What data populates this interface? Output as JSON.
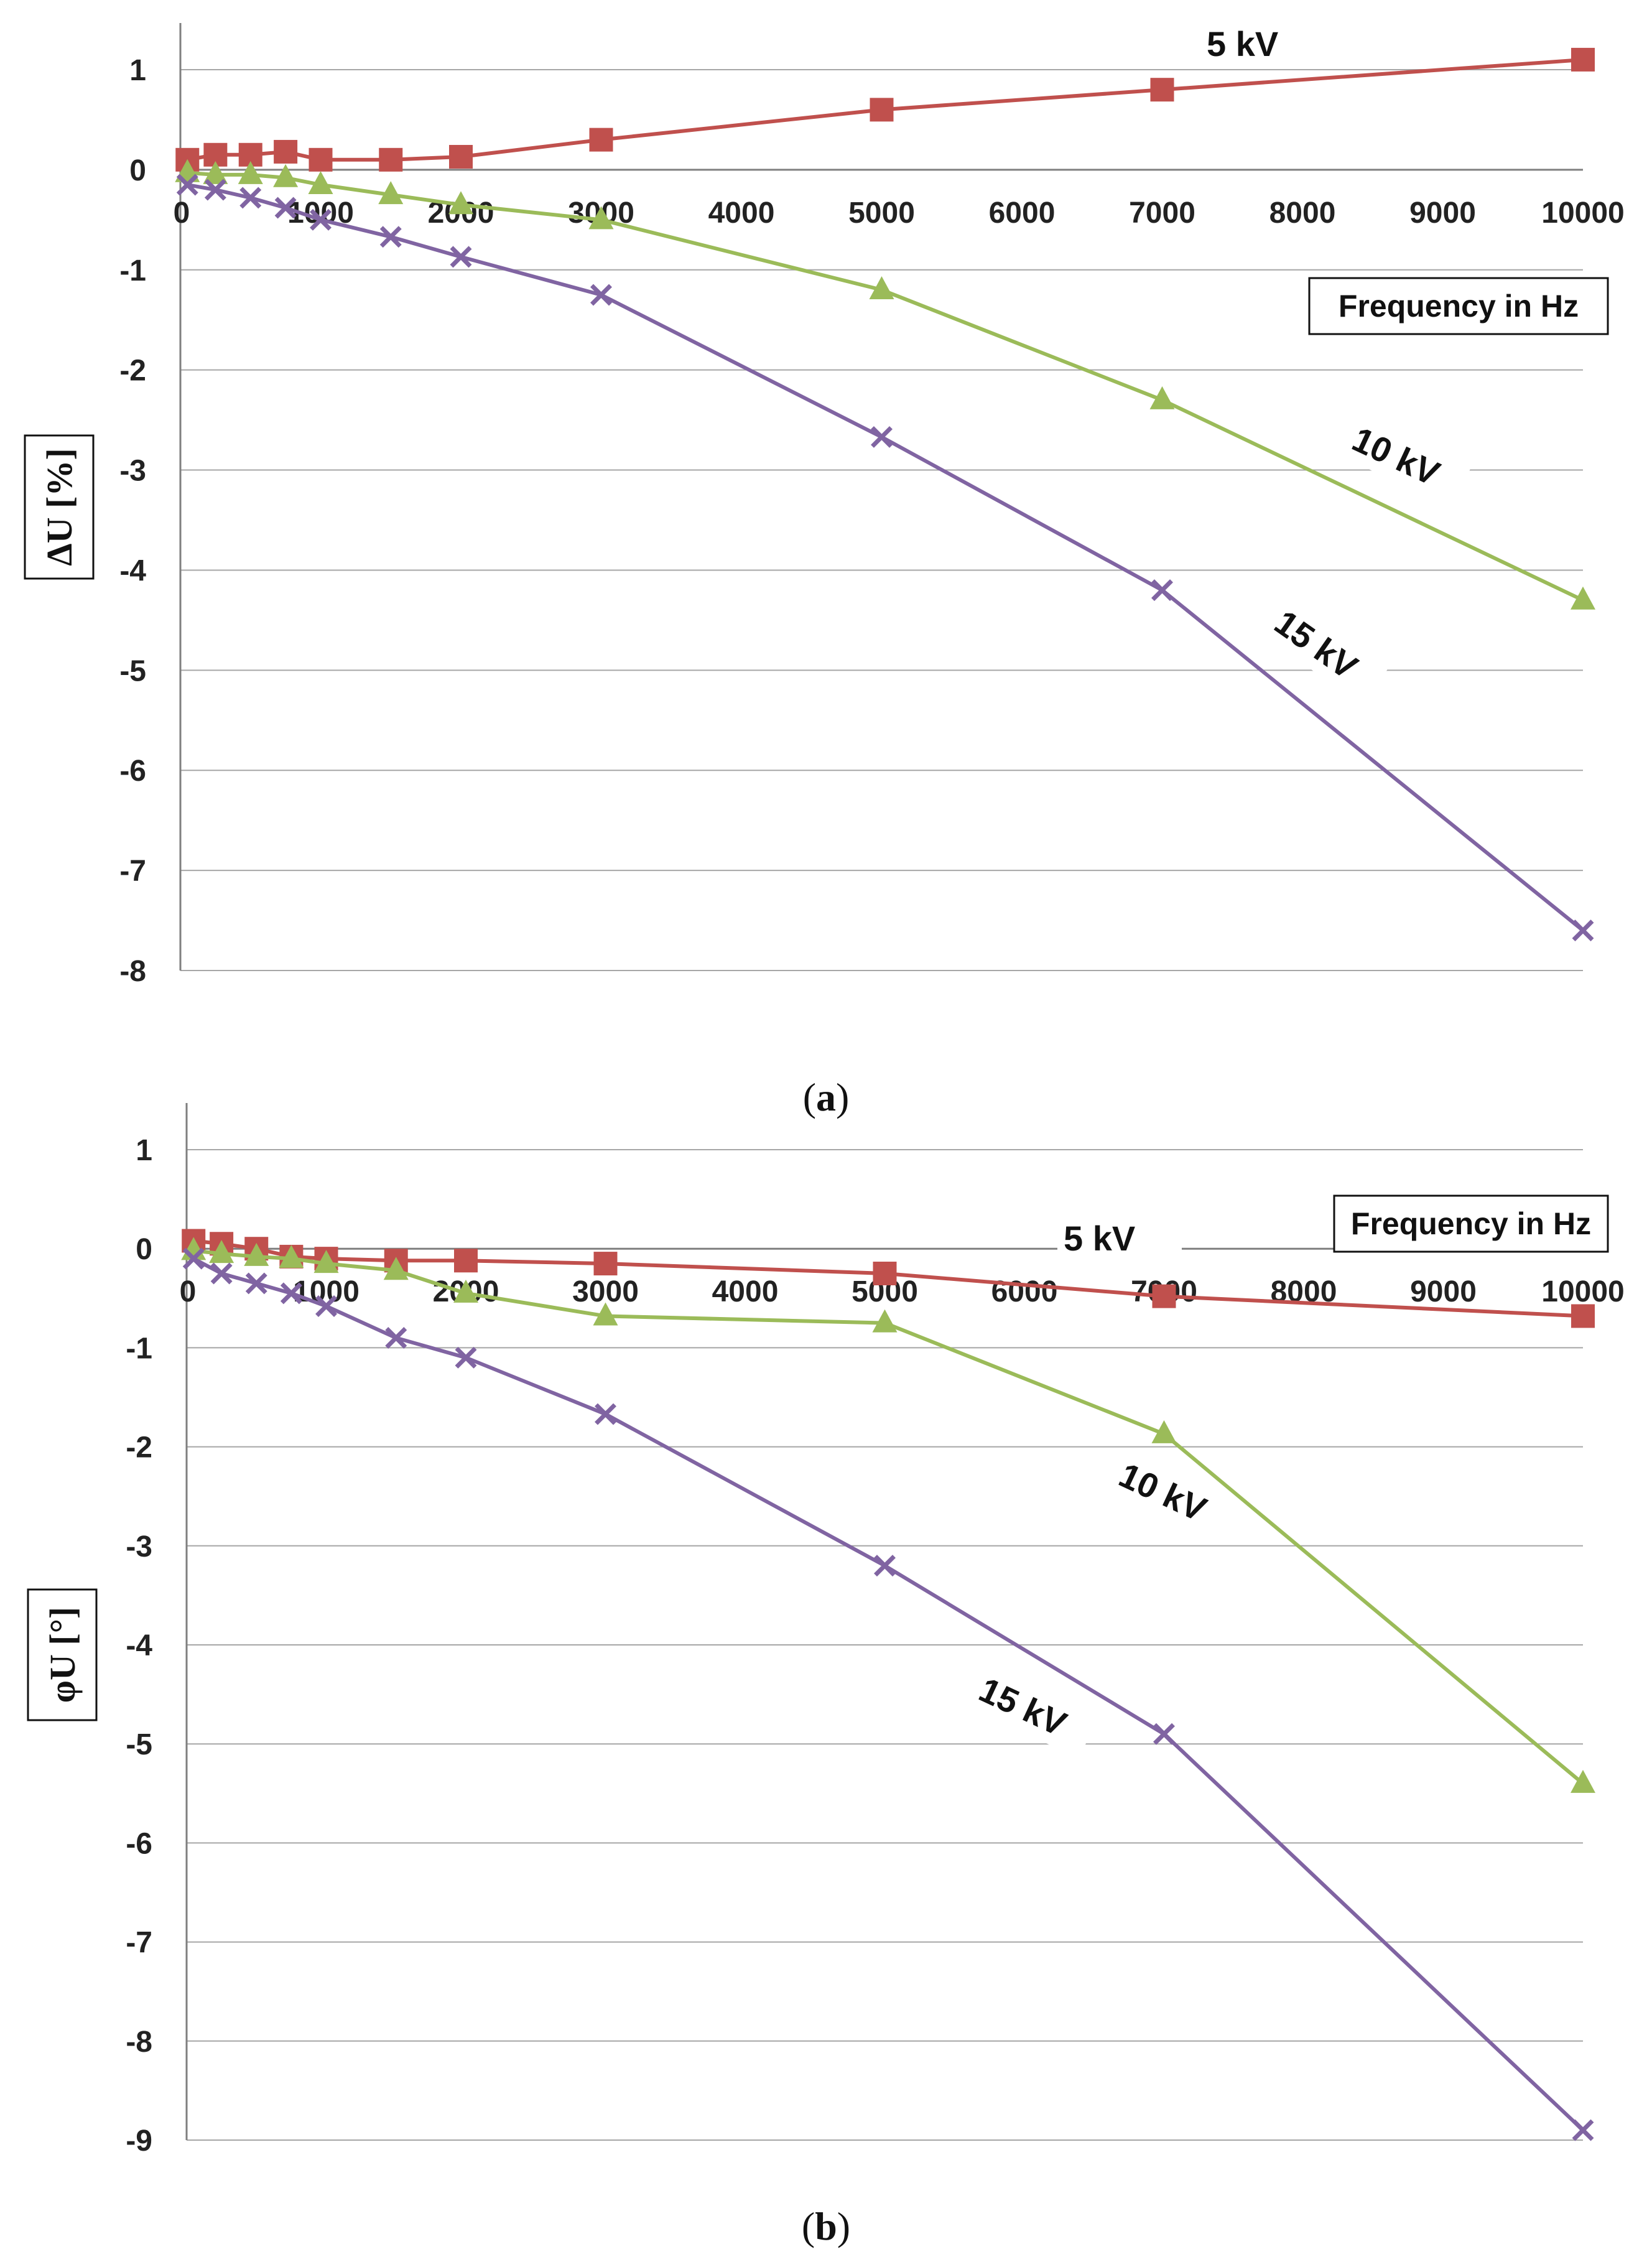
{
  "chart_data": [
    {
      "type": "line",
      "panel": "a",
      "caption_letter": "a",
      "ylabel": "ΔU [%]",
      "xlabel": "Frequency in Hz",
      "ylim": [
        -8,
        1
      ],
      "yticks": [
        1,
        0,
        -1,
        -2,
        -3,
        -4,
        -5,
        -6,
        -7,
        -8
      ],
      "xlim": [
        0,
        10000
      ],
      "xticks": [
        0,
        1000,
        2000,
        3000,
        4000,
        5000,
        6000,
        7000,
        8000,
        9000,
        10000
      ],
      "grid": true,
      "legend": "top-right",
      "series": [
        {
          "name": "5 kV",
          "color": "#c0504d",
          "marker": "square",
          "x": [
            50,
            250,
            500,
            750,
            1000,
            1500,
            2000,
            3000,
            5000,
            7000,
            10000
          ],
          "y": [
            0.1,
            0.15,
            0.15,
            0.18,
            0.1,
            0.1,
            0.13,
            0.3,
            0.6,
            0.8,
            1.1
          ]
        },
        {
          "name": "10 kV",
          "color": "#9bbb59",
          "marker": "triangle",
          "x": [
            50,
            250,
            500,
            750,
            1000,
            1500,
            2000,
            3000,
            5000,
            7000,
            10000
          ],
          "y": [
            -0.03,
            -0.05,
            -0.05,
            -0.08,
            -0.15,
            -0.25,
            -0.35,
            -0.5,
            -1.2,
            -2.3,
            -4.3
          ]
        },
        {
          "name": "15 kV",
          "color": "#8064a2",
          "marker": "x",
          "x": [
            50,
            250,
            500,
            750,
            1000,
            1500,
            2000,
            3000,
            5000,
            7000,
            10000
          ],
          "y": [
            -0.15,
            -0.2,
            -0.28,
            -0.38,
            -0.5,
            -0.67,
            -0.87,
            -1.25,
            -2.67,
            -4.2,
            -7.6
          ]
        }
      ]
    },
    {
      "type": "line",
      "panel": "b",
      "caption_letter": "b",
      "ylabel": "φU [°]",
      "xlabel": "Frequency in Hz",
      "ylim": [
        -9,
        1
      ],
      "yticks": [
        1,
        0,
        -1,
        -2,
        -3,
        -4,
        -5,
        -6,
        -7,
        -8,
        -9
      ],
      "xlim": [
        0,
        10000
      ],
      "xticks": [
        0,
        1000,
        2000,
        3000,
        4000,
        5000,
        6000,
        7000,
        8000,
        9000,
        10000
      ],
      "grid": true,
      "legend": "top-right",
      "series": [
        {
          "name": "5 kV",
          "color": "#c0504d",
          "marker": "square",
          "x": [
            50,
            250,
            500,
            750,
            1000,
            1500,
            2000,
            3000,
            5000,
            7000,
            10000
          ],
          "y": [
            0.08,
            0.05,
            0.0,
            -0.08,
            -0.1,
            -0.12,
            -0.12,
            -0.15,
            -0.25,
            -0.48,
            -0.68
          ]
        },
        {
          "name": "10 kV",
          "color": "#9bbb59",
          "marker": "triangle",
          "x": [
            50,
            250,
            500,
            750,
            1000,
            1500,
            2000,
            3000,
            5000,
            7000,
            10000
          ],
          "y": [
            -0.02,
            -0.05,
            -0.08,
            -0.1,
            -0.15,
            -0.22,
            -0.45,
            -0.68,
            -0.75,
            -1.87,
            -5.4
          ]
        },
        {
          "name": "15 kV",
          "color": "#8064a2",
          "marker": "x",
          "x": [
            50,
            250,
            500,
            750,
            1000,
            1500,
            2000,
            3000,
            5000,
            7000,
            10000
          ],
          "y": [
            -0.1,
            -0.25,
            -0.35,
            -0.45,
            -0.58,
            -0.9,
            -1.1,
            -1.67,
            -3.2,
            -4.9,
            -8.9
          ]
        }
      ]
    }
  ]
}
